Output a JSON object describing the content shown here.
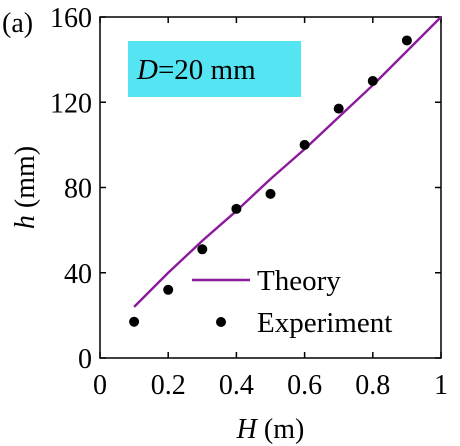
{
  "panel_label": "(a)",
  "chart_data": {
    "type": "scatter",
    "annotation": {
      "var": "D",
      "text": "=20 mm",
      "bg": "#55e4f2"
    },
    "xlabel": {
      "var": "H",
      "unit": " (m)"
    },
    "ylabel": {
      "var": "h",
      "unit": " (mm)"
    },
    "xlim": [
      0,
      1
    ],
    "ylim": [
      0,
      160
    ],
    "xticks": [
      0,
      0.2,
      0.4,
      0.6,
      0.8,
      1
    ],
    "xtick_labels": [
      "0",
      "0.2",
      "0.4",
      "0.6",
      "0.8",
      "1"
    ],
    "yticks": [
      0,
      40,
      80,
      120,
      160
    ],
    "ytick_labels": [
      "0",
      "40",
      "80",
      "120",
      "160"
    ],
    "grid": false,
    "legend_position": "bottom-right",
    "series": [
      {
        "name": "Theory",
        "kind": "line",
        "color": "#8b1a9c",
        "x": [
          0.1,
          0.2,
          0.3,
          0.4,
          0.5,
          0.6,
          0.7,
          0.8,
          0.9,
          1.0
        ],
        "y": [
          24,
          40,
          55,
          69,
          84,
          98,
          113,
          128,
          144,
          160
        ]
      },
      {
        "name": "Experiment",
        "kind": "scatter",
        "color": "#000000",
        "x": [
          0.1,
          0.2,
          0.3,
          0.4,
          0.5,
          0.6,
          0.7,
          0.8,
          0.9
        ],
        "y": [
          17,
          32,
          51,
          70,
          77,
          100,
          117,
          130,
          149
        ]
      }
    ]
  }
}
